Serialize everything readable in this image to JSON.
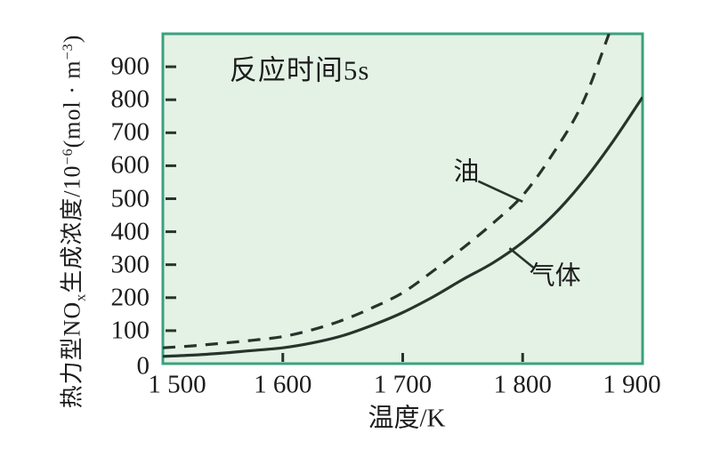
{
  "chart_data": {
    "type": "line",
    "xlabel": "温度/K",
    "ylabel": "热力型NOx生成浓度/10⁻⁶(mol·m⁻³)",
    "ylabel_parts": [
      {
        "text": "热力型NO"
      },
      {
        "text": "x",
        "style": "sub"
      },
      {
        "text": "生成浓度/10"
      },
      {
        "text": "−6",
        "style": "sup"
      },
      {
        "text": "(mol · m"
      },
      {
        "text": "−3",
        "style": "sup"
      },
      {
        "text": ")"
      }
    ],
    "xlim": [
      1500,
      1900
    ],
    "ylim": [
      0,
      1000
    ],
    "grid": false,
    "legend_position": "inline-annotations",
    "x_ticks": [
      {
        "value": 1500,
        "label": "1 500",
        "tick": false,
        "dx": 16
      },
      {
        "value": 1600,
        "label": "1 600",
        "tick": true,
        "dx": 0
      },
      {
        "value": 1700,
        "label": "1 700",
        "tick": true,
        "dx": 0
      },
      {
        "value": 1800,
        "label": "1 800",
        "tick": true,
        "dx": 0
      },
      {
        "value": 1900,
        "label": "1 900",
        "tick": false,
        "dx": -12
      }
    ],
    "y_ticks": [
      {
        "value": 0,
        "label": "0",
        "tick": false
      },
      {
        "value": 100,
        "label": "100",
        "tick": true
      },
      {
        "value": 200,
        "label": "200",
        "tick": true
      },
      {
        "value": 300,
        "label": "300",
        "tick": true
      },
      {
        "value": 400,
        "label": "400",
        "tick": true
      },
      {
        "value": 500,
        "label": "500",
        "tick": true
      },
      {
        "value": 600,
        "label": "600",
        "tick": true
      },
      {
        "value": 700,
        "label": "700",
        "tick": true
      },
      {
        "value": 800,
        "label": "800",
        "tick": true
      },
      {
        "value": 900,
        "label": "900",
        "tick": true
      }
    ],
    "series": [
      {
        "name": "油",
        "style": "dashed",
        "points": [
          [
            1500,
            48
          ],
          [
            1525,
            54
          ],
          [
            1550,
            62
          ],
          [
            1575,
            71
          ],
          [
            1600,
            82
          ],
          [
            1625,
            103
          ],
          [
            1650,
            132
          ],
          [
            1675,
            170
          ],
          [
            1700,
            215
          ],
          [
            1725,
            280
          ],
          [
            1750,
            350
          ],
          [
            1775,
            425
          ],
          [
            1800,
            510
          ],
          [
            1825,
            635
          ],
          [
            1850,
            790
          ],
          [
            1872,
            1000
          ]
        ]
      },
      {
        "name": "气体",
        "style": "solid",
        "points": [
          [
            1500,
            22
          ],
          [
            1525,
            26
          ],
          [
            1550,
            32
          ],
          [
            1575,
            40
          ],
          [
            1600,
            48
          ],
          [
            1625,
            63
          ],
          [
            1650,
            85
          ],
          [
            1675,
            117
          ],
          [
            1700,
            155
          ],
          [
            1725,
            202
          ],
          [
            1750,
            255
          ],
          [
            1775,
            305
          ],
          [
            1800,
            368
          ],
          [
            1825,
            448
          ],
          [
            1850,
            550
          ],
          [
            1875,
            672
          ],
          [
            1900,
            808
          ]
        ]
      }
    ],
    "annotations": {
      "reaction_time": {
        "text": "反应时间5s",
        "pos": [
          1614,
          890
        ]
      },
      "oil_label": {
        "text": "油",
        "pos": [
          1753,
          580
        ]
      },
      "gas_label": {
        "text": "气体",
        "pos": [
          1827,
          264
        ]
      }
    },
    "pointers": [
      {
        "for": "油",
        "from": [
          1763,
          553
        ],
        "to": [
          1800,
          491
        ]
      },
      {
        "for": "气体",
        "from": [
          1789,
          350
        ],
        "to": [
          1809,
          291
        ]
      }
    ],
    "colors": {
      "plot_background": "#e4f2e5",
      "plot_border": "#3aa17e",
      "curve": "#26342c",
      "tick": "#26342c",
      "text": "#1d1d1d",
      "page_background": "#ffffff"
    }
  }
}
